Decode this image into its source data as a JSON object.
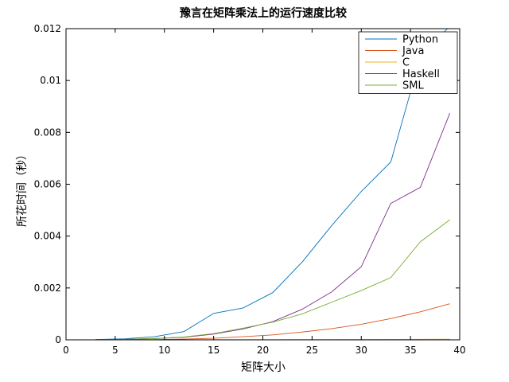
{
  "chart_data": {
    "type": "line",
    "title": "豫言在矩阵乘法上的运行速度比较",
    "xlabel": "矩阵大小",
    "ylabel": "所花时间（秒）",
    "xlim": [
      0,
      40
    ],
    "ylim": [
      0,
      0.012
    ],
    "xticks": [
      0,
      5,
      10,
      15,
      20,
      25,
      30,
      35,
      40
    ],
    "xtick_labels": [
      "0",
      "5",
      "10",
      "15",
      "20",
      "25",
      "30",
      "35",
      "40"
    ],
    "yticks": [
      0,
      0.002,
      0.004,
      0.006,
      0.008,
      0.01,
      0.012
    ],
    "ytick_labels": [
      "0",
      "0.002",
      "0.004",
      "0.006",
      "0.008",
      "0.01",
      "0.012"
    ],
    "grid": false,
    "legend_position": "top-right",
    "x": [
      3,
      6,
      9,
      12,
      15,
      18,
      21,
      24,
      27,
      30,
      33,
      36,
      39
    ],
    "series": [
      {
        "name": "Python",
        "color": "#0072bd",
        "values": [
          1e-05,
          4e-05,
          0.00012,
          0.00032,
          0.00102,
          0.00123,
          0.00182,
          0.003,
          0.00441,
          0.00572,
          0.00686,
          0.0109,
          0.0121
        ]
      },
      {
        "name": "Java",
        "color": "#d95319",
        "values": [
          2e-06,
          5e-06,
          1e-05,
          3e-05,
          6e-05,
          0.00012,
          0.00019,
          0.0003,
          0.00043,
          0.0006,
          0.00082,
          0.00108,
          0.00139
        ]
      },
      {
        "name": "C",
        "color": "#edb120",
        "values": [
          5e-07,
          1e-06,
          2e-06,
          3e-06,
          4e-06,
          5e-06,
          6e-06,
          8e-06,
          1e-05,
          1.2e-05,
          1.5e-05,
          2e-05,
          2.5e-05
        ]
      },
      {
        "name": "Haskell",
        "color": "#7e2f8e",
        "values": [
          5e-06,
          2e-05,
          5e-05,
          0.0001,
          0.00022,
          0.00042,
          0.0007,
          0.00118,
          0.00185,
          0.00282,
          0.00526,
          0.00588,
          0.00874
        ]
      },
      {
        "name": "SML",
        "color": "#77ac30",
        "values": [
          5e-06,
          2e-05,
          5e-05,
          0.00011,
          0.00024,
          0.00045,
          0.00068,
          0.001,
          0.00145,
          0.0019,
          0.0024,
          0.00378,
          0.00463
        ]
      }
    ]
  }
}
